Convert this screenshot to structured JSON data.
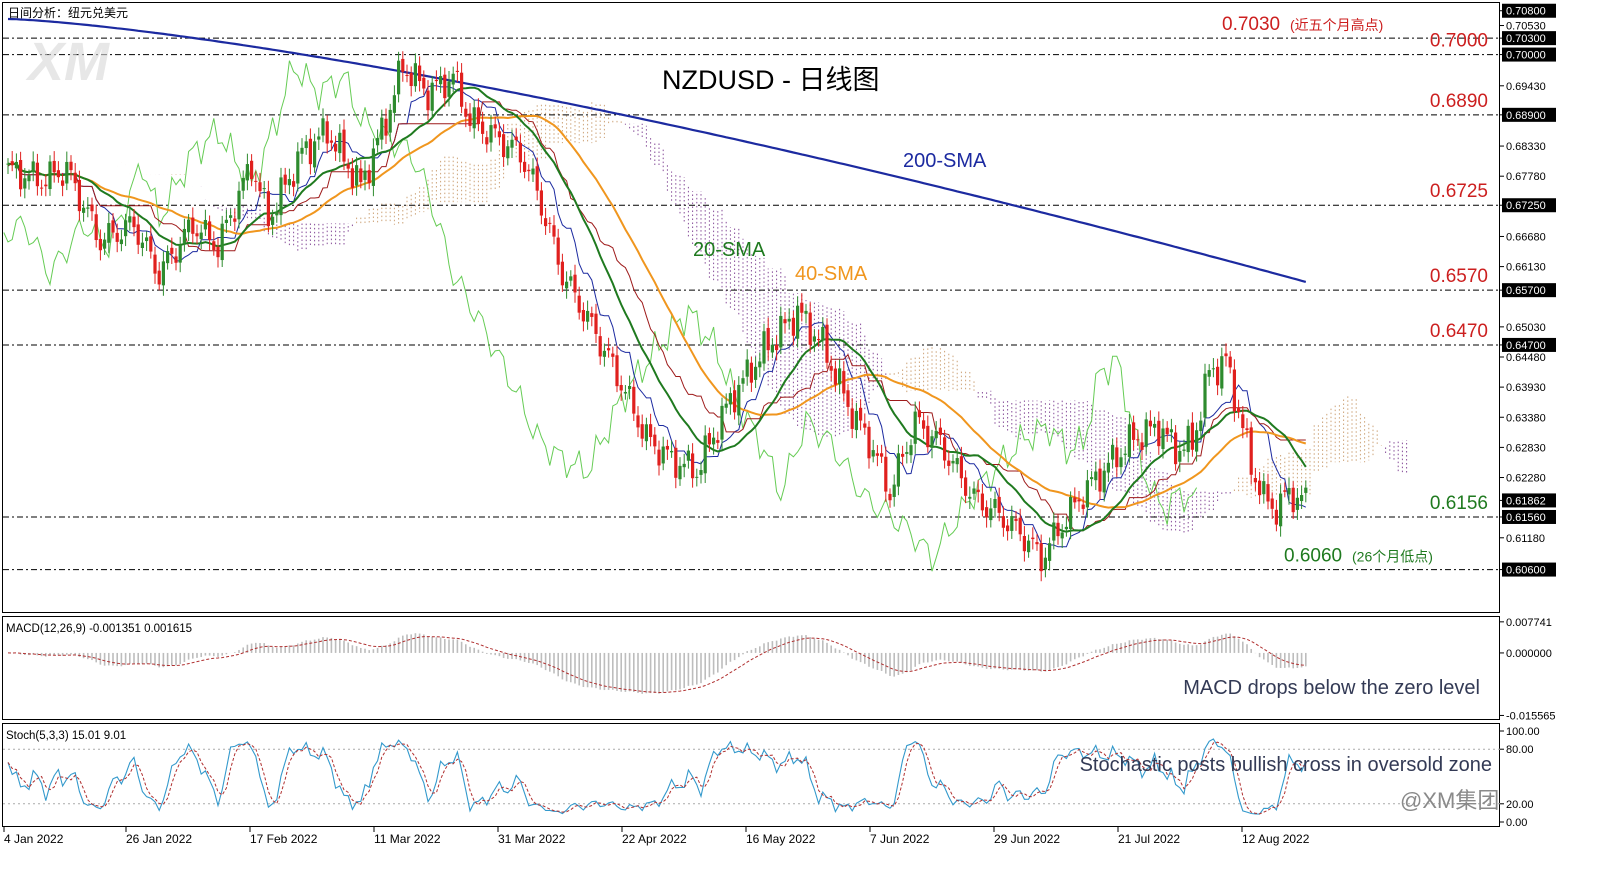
{
  "app": {
    "header_caption": "日间分析：纽元兑美元",
    "watermark": "XM",
    "brand": "@XM集团"
  },
  "colors": {
    "bull": "#2e8b2e",
    "bear": "#e0201e",
    "sma20": "#1f7a1f",
    "sma40": "#f0961e",
    "sma200": "#1c2aa0",
    "kijun": "#9e1b1b",
    "tenkan": "#1c2aa0",
    "chikou": "#66cc55",
    "cloud_bear": "#7b3b8f",
    "cloud_bull": "#c79a6a",
    "level_red": "#cc1f1f",
    "level_green": "#1f7a1f",
    "grid": "#000000",
    "macd_hist": "#bdbdbd",
    "macd_signal": "#b03030",
    "stoch_k": "#3399cc",
    "stoch_d": "#b03030"
  },
  "chart_data": [
    {
      "type": "candlestick",
      "title": "NZDUSD - 日线图",
      "ylim": [
        0.603,
        0.7085
      ],
      "price_axis_labels": [
        "0.70800",
        "0.70530",
        "0.70300",
        "0.70000",
        "0.69430",
        "0.68900",
        "0.68330",
        "0.67780",
        "0.67250",
        "0.66680",
        "0.66130",
        "0.65700",
        "0.65030",
        "0.64700",
        "0.64480",
        "0.63930",
        "0.63380",
        "0.62830",
        "0.62280",
        "0.61862",
        "0.61560",
        "0.61180",
        "0.60600"
      ],
      "highlighted_price_labels": [
        "0.70800",
        "0.70300",
        "0.70000",
        "0.68900",
        "0.67250",
        "0.65700",
        "0.64700",
        "0.61862",
        "0.61560",
        "0.60600"
      ],
      "date_labels": [
        "4 Jan 2022",
        "26 Jan 2022",
        "17 Feb 2022",
        "11 Mar 2022",
        "31 Mar 2022",
        "22 Apr 2022",
        "16 May 2022",
        "7 Jun 2022",
        "29 Jun 2022",
        "21 Jul 2022",
        "12 Aug 2022"
      ],
      "levels": [
        {
          "price": 0.703,
          "label": "0.7030",
          "note": "(近五个月高点)",
          "color": "red"
        },
        {
          "price": 0.7,
          "label": "0.7000",
          "note": "",
          "color": "red"
        },
        {
          "price": 0.689,
          "label": "0.6890",
          "note": "",
          "color": "red"
        },
        {
          "price": 0.6725,
          "label": "0.6725",
          "note": "",
          "color": "red"
        },
        {
          "price": 0.657,
          "label": "0.6570",
          "note": "",
          "color": "red"
        },
        {
          "price": 0.647,
          "label": "0.6470",
          "note": "",
          "color": "red"
        },
        {
          "price": 0.6156,
          "label": "0.6156",
          "note": "",
          "color": "green"
        },
        {
          "price": 0.606,
          "label": "0.6060",
          "note": "(26个月低点)",
          "color": "green"
        }
      ],
      "series_labels": {
        "sma200": "200-SMA",
        "sma20": "20-SMA",
        "sma40": "40-SMA"
      },
      "close_anchors": [
        [
          0,
          0.679
        ],
        [
          8,
          0.677
        ],
        [
          14,
          0.679
        ],
        [
          22,
          0.666
        ],
        [
          30,
          0.669
        ],
        [
          36,
          0.66
        ],
        [
          44,
          0.669
        ],
        [
          50,
          0.665
        ],
        [
          58,
          0.68
        ],
        [
          62,
          0.67
        ],
        [
          70,
          0.682
        ],
        [
          76,
          0.686
        ],
        [
          84,
          0.676
        ],
        [
          90,
          0.688
        ],
        [
          94,
          0.698
        ],
        [
          100,
          0.693
        ],
        [
          106,
          0.696
        ],
        [
          110,
          0.688
        ],
        [
          116,
          0.685
        ],
        [
          122,
          0.682
        ],
        [
          126,
          0.675
        ],
        [
          132,
          0.66
        ],
        [
          140,
          0.649
        ],
        [
          146,
          0.64
        ],
        [
          152,
          0.63
        ],
        [
          158,
          0.626
        ],
        [
          164,
          0.624
        ],
        [
          172,
          0.637
        ],
        [
          180,
          0.646
        ],
        [
          188,
          0.653
        ],
        [
          194,
          0.647
        ],
        [
          200,
          0.636
        ],
        [
          206,
          0.628
        ],
        [
          210,
          0.62
        ],
        [
          216,
          0.633
        ],
        [
          222,
          0.629
        ],
        [
          230,
          0.619
        ],
        [
          236,
          0.616
        ],
        [
          242,
          0.612
        ],
        [
          246,
          0.608
        ],
        [
          250,
          0.613
        ],
        [
          256,
          0.62
        ],
        [
          262,
          0.625
        ],
        [
          268,
          0.63
        ],
        [
          274,
          0.632
        ],
        [
          278,
          0.628
        ],
        [
          282,
          0.629
        ],
        [
          286,
          0.642
        ],
        [
          290,
          0.644
        ],
        [
          293,
          0.635
        ],
        [
          296,
          0.625
        ],
        [
          299,
          0.619
        ],
        [
          302,
          0.617
        ],
        [
          305,
          0.62
        ],
        [
          308,
          0.6186
        ]
      ]
    },
    {
      "type": "line",
      "title": "MACD(12,26,9) -0.001351 0.001615",
      "axis_labels": [
        "0.007741",
        "0.000000",
        "-0.015565"
      ],
      "ylim": [
        -0.0162,
        0.0082
      ],
      "annotation": "MACD drops below the zero level"
    },
    {
      "type": "line",
      "title": "Stoch(5,3,3) 15.01 9.01",
      "axis_labels": [
        "100.00",
        "80.00",
        "20.00",
        "0.00"
      ],
      "ylim": [
        0,
        100
      ],
      "annotation": "Stochastic posts bullish cross in oversold zone"
    }
  ]
}
